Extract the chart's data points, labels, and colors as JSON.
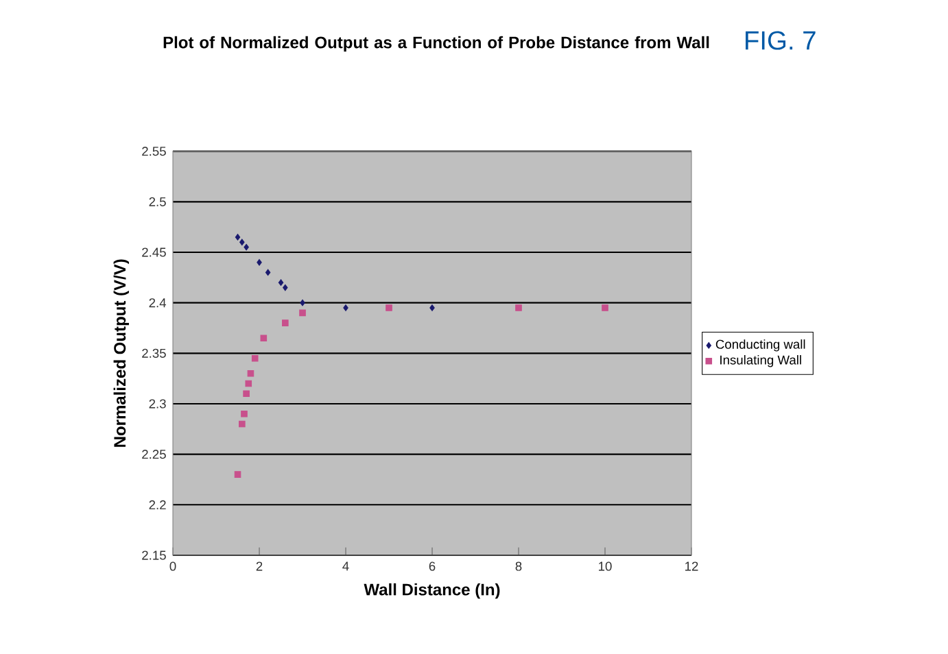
{
  "chart_data": {
    "type": "scatter",
    "title": "Plot of Normalized Output as a Function of Probe Distance from Wall",
    "xlabel": "Wall Distance (In)",
    "ylabel": "Normalized Output (V/V)",
    "annotations": [
      "FIG. 7"
    ],
    "xlim": [
      0,
      12
    ],
    "ylim": [
      2.15,
      2.55
    ],
    "xticks": [
      0,
      2,
      4,
      6,
      8,
      10,
      12
    ],
    "yticks": [
      2.15,
      2.2,
      2.25,
      2.3,
      2.35,
      2.4,
      2.45,
      2.5,
      2.55
    ],
    "grid": "y",
    "legend": "right",
    "series": [
      {
        "name": "Conducting wall",
        "color": "#1a1a6e",
        "marker": "diamond",
        "x": [
          1.5,
          1.6,
          1.7,
          2.0,
          2.2,
          2.5,
          2.6,
          3.0,
          4,
          6
        ],
        "values": [
          2.465,
          2.46,
          2.455,
          2.44,
          2.43,
          2.42,
          2.415,
          2.4,
          2.395,
          2.395
        ]
      },
      {
        "name": "Insulating Wall",
        "color": "#c8508c",
        "marker": "square",
        "x": [
          1.5,
          1.6,
          1.65,
          1.7,
          1.75,
          1.8,
          1.9,
          2.1,
          2.6,
          3.0,
          5,
          8,
          10
        ],
        "values": [
          2.23,
          2.28,
          2.29,
          2.31,
          2.32,
          2.33,
          2.345,
          2.365,
          2.38,
          2.39,
          2.395,
          2.395,
          2.395
        ]
      }
    ]
  }
}
